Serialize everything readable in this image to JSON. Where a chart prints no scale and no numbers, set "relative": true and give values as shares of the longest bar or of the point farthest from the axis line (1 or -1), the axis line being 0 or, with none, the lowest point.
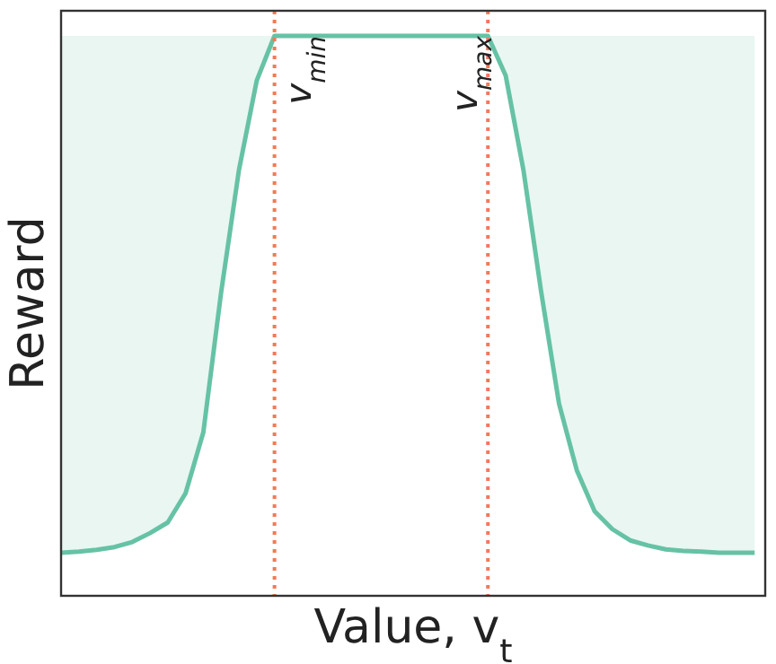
{
  "chart_data": {
    "type": "line",
    "relative": true,
    "xlabel": "Value, v$_{t}$",
    "ylabel": "Reward",
    "categories": [
      null,
      null,
      null,
      null,
      null,
      null,
      null,
      null,
      null,
      null,
      null,
      null,
      null,
      null,
      null,
      null,
      null,
      null,
      null,
      null,
      null,
      null,
      null,
      null,
      null,
      null,
      null,
      null,
      null,
      null,
      null,
      null,
      null,
      null,
      null,
      null,
      null,
      null,
      null,
      null
    ],
    "series": [
      {
        "color": "#66c2a5",
        "values": [
          0.077,
          0.079,
          0.082,
          0.087,
          0.096,
          0.112,
          0.131,
          0.183,
          0.292,
          0.542,
          0.76,
          0.92,
          1,
          1,
          1,
          1,
          1,
          1,
          1,
          1,
          1,
          1,
          1,
          1,
          1,
          0.929,
          0.76,
          0.542,
          0.343,
          0.224,
          0.151,
          0.119,
          0.099,
          0.09,
          0.083,
          0.08,
          0.079,
          0.077,
          0.077,
          0.077
        ],
        "lower": [
          0.077,
          0.079,
          0.082,
          0.087,
          0.096,
          0.112,
          0.131,
          0.183,
          0.292,
          0.542,
          0.76,
          0.92,
          1,
          1,
          1,
          1,
          1,
          1,
          1,
          1,
          1,
          1,
          1,
          1,
          1,
          0.929,
          0.76,
          0.542,
          0.343,
          0.224,
          0.151,
          0.119,
          0.099,
          0.09,
          0.083,
          0.08,
          0.079,
          0.077,
          0.077,
          0.077
        ],
        "upper": [
          1,
          1,
          1,
          1,
          1,
          1,
          1,
          1,
          1,
          1,
          1,
          1,
          1,
          1,
          1,
          1,
          1,
          1,
          1,
          1,
          1,
          1,
          1,
          1,
          1,
          1,
          1,
          1,
          1,
          1,
          1,
          1,
          1,
          1,
          1,
          1,
          1,
          1,
          1,
          1
        ]
      }
    ],
    "annotations": [
      "v$_{min}$",
      "v$_{max}$"
    ]
  }
}
